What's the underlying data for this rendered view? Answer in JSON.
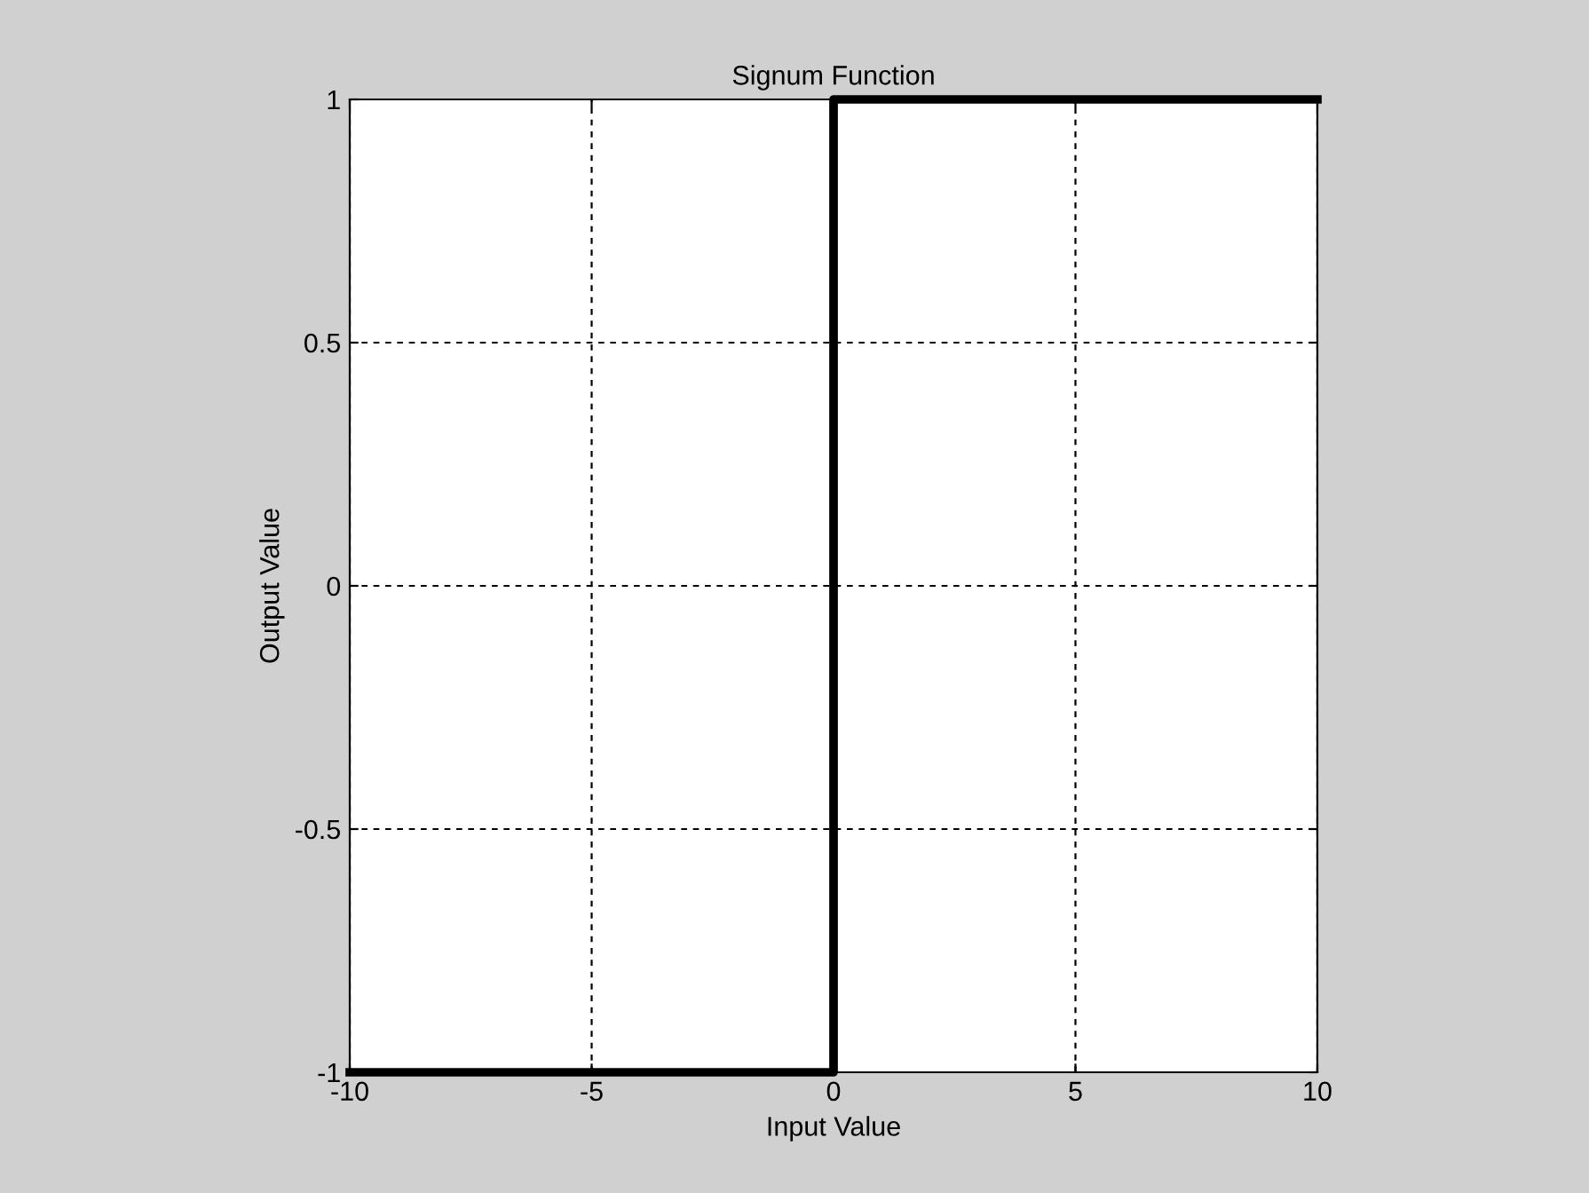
{
  "chart_data": {
    "type": "line",
    "title": "Signum Function",
    "xlabel": "Input Value",
    "ylabel": "Output Value",
    "series": [
      {
        "color": "#000000",
        "x": [
          -10,
          0,
          0,
          10
        ],
        "values": [
          -1,
          -1,
          1,
          1
        ]
      }
    ],
    "xlim": [
      -10,
      10
    ],
    "ylim": [
      -1,
      1
    ],
    "xticks": [
      -10,
      -5,
      0,
      5,
      10
    ],
    "yticks": [
      -1,
      -0.5,
      0,
      0.5,
      1
    ],
    "grid": true
  }
}
